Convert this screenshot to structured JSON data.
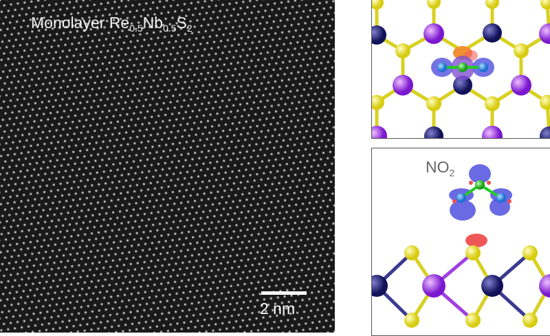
{
  "stem_image": {
    "title_main": "Monolayer Re",
    "title_sub1": "0.5",
    "title_mid": "Nb",
    "title_sub2": "0.5",
    "title_end": "S",
    "title_sub3": "2",
    "scale_bar_label": "2 nm"
  },
  "side_view": {
    "molecule_main": "NO",
    "molecule_sub": "2"
  },
  "colors": {
    "sulfur": "#e8e02a",
    "rhenium": "#8a2be2",
    "niobium": "#1a1a6e",
    "nitrogen": "#22cc22",
    "oxygen": "#2a8ae8",
    "charge_depletion": "#5a5ae0",
    "charge_accumulation": "#f05050"
  }
}
